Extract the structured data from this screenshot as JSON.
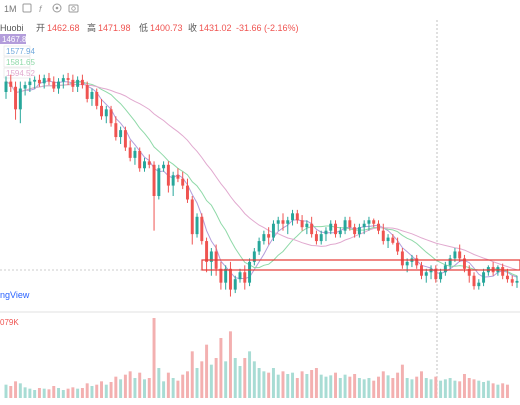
{
  "toolbar": {
    "interval_label": "1M",
    "icons": [
      "candle-style-icon",
      "indicator-icon",
      "settings-icon",
      "camera-icon"
    ]
  },
  "ohlc_header": {
    "symbol": "Huobi",
    "open_label": "开",
    "open_value": "1462.68",
    "high_label": "高",
    "high_value": "1471.98",
    "low_label": "低",
    "low_value": "1400.73",
    "close_label": "收",
    "close_value": "1431.02",
    "change_value": "-31.66 (-2.16%)"
  },
  "ma_labels": [
    "1467.88",
    "1577.94",
    "1581.65",
    "1594.52"
  ],
  "watermark": "ngView",
  "volume_label": "079K",
  "colors": {
    "up": "#26a69a",
    "down": "#ef5350",
    "volume_up": "#a8dcd4",
    "volume_down": "#f3b0b0",
    "ma_fast": "#b39ddb",
    "ma_mid": "#8fd9a8",
    "ma_slow": "#e1a9cf",
    "support_box": "#e53935"
  },
  "chart_data": {
    "type": "candlestick",
    "ohlc": [
      [
        1700,
        1790,
        1660,
        1760
      ],
      [
        1760,
        1800,
        1700,
        1730
      ],
      [
        1730,
        1760,
        1540,
        1600
      ],
      [
        1600,
        1760,
        1520,
        1720
      ],
      [
        1720,
        1760,
        1680,
        1740
      ],
      [
        1740,
        1780,
        1700,
        1760
      ],
      [
        1760,
        1790,
        1720,
        1770
      ],
      [
        1770,
        1800,
        1730,
        1750
      ],
      [
        1750,
        1800,
        1720,
        1780
      ],
      [
        1780,
        1810,
        1740,
        1760
      ],
      [
        1760,
        1790,
        1700,
        1720
      ],
      [
        1720,
        1780,
        1690,
        1760
      ],
      [
        1760,
        1800,
        1720,
        1780
      ],
      [
        1780,
        1810,
        1740,
        1770
      ],
      [
        1770,
        1800,
        1700,
        1730
      ],
      [
        1730,
        1790,
        1700,
        1770
      ],
      [
        1770,
        1800,
        1720,
        1740
      ],
      [
        1740,
        1760,
        1640,
        1660
      ],
      [
        1660,
        1720,
        1620,
        1700
      ],
      [
        1700,
        1720,
        1600,
        1620
      ],
      [
        1620,
        1660,
        1540,
        1560
      ],
      [
        1560,
        1620,
        1520,
        1600
      ],
      [
        1600,
        1620,
        1500,
        1520
      ],
      [
        1520,
        1560,
        1420,
        1440
      ],
      [
        1440,
        1500,
        1400,
        1480
      ],
      [
        1480,
        1500,
        1360,
        1380
      ],
      [
        1380,
        1420,
        1300,
        1320
      ],
      [
        1320,
        1380,
        1280,
        1360
      ],
      [
        1360,
        1380,
        1240,
        1260
      ],
      [
        1260,
        1320,
        1240,
        1300
      ],
      [
        1300,
        1340,
        1260,
        1280
      ],
      [
        1280,
        1300,
        900,
        1100
      ],
      [
        1100,
        1280,
        1080,
        1260
      ],
      [
        1260,
        1300,
        1240,
        1280
      ],
      [
        1280,
        1300,
        1120,
        1160
      ],
      [
        1160,
        1240,
        1100,
        1220
      ],
      [
        1220,
        1260,
        1180,
        1200
      ],
      [
        1200,
        1240,
        1140,
        1160
      ],
      [
        1160,
        1200,
        1060,
        1080
      ],
      [
        1080,
        1100,
        820,
        880
      ],
      [
        880,
        1000,
        860,
        980
      ],
      [
        980,
        1000,
        820,
        840
      ],
      [
        840,
        860,
        660,
        720
      ],
      [
        720,
        800,
        640,
        780
      ],
      [
        780,
        820,
        640,
        680
      ],
      [
        680,
        720,
        560,
        600
      ],
      [
        600,
        700,
        560,
        680
      ],
      [
        680,
        720,
        520,
        560
      ],
      [
        560,
        640,
        540,
        620
      ],
      [
        620,
        680,
        600,
        660
      ],
      [
        660,
        700,
        560,
        600
      ],
      [
        600,
        740,
        580,
        720
      ],
      [
        720,
        800,
        700,
        780
      ],
      [
        780,
        860,
        760,
        840
      ],
      [
        840,
        900,
        820,
        880
      ],
      [
        880,
        920,
        820,
        860
      ],
      [
        860,
        960,
        840,
        940
      ],
      [
        940,
        980,
        900,
        960
      ],
      [
        960,
        1000,
        900,
        940
      ],
      [
        940,
        980,
        880,
        960
      ],
      [
        960,
        1020,
        930,
        1000
      ],
      [
        1000,
        1020,
        940,
        960
      ],
      [
        960,
        990,
        900,
        920
      ],
      [
        920,
        960,
        880,
        940
      ],
      [
        940,
        980,
        860,
        880
      ],
      [
        880,
        900,
        820,
        840
      ],
      [
        840,
        900,
        820,
        880
      ],
      [
        880,
        920,
        840,
        900
      ],
      [
        900,
        960,
        880,
        940
      ],
      [
        940,
        960,
        860,
        880
      ],
      [
        880,
        920,
        860,
        900
      ],
      [
        900,
        980,
        880,
        960
      ],
      [
        960,
        980,
        900,
        920
      ],
      [
        920,
        940,
        860,
        880
      ],
      [
        880,
        940,
        860,
        920
      ],
      [
        920,
        960,
        880,
        940
      ],
      [
        940,
        980,
        900,
        960
      ],
      [
        960,
        970,
        920,
        940
      ],
      [
        940,
        960,
        880,
        900
      ],
      [
        900,
        940,
        820,
        840
      ],
      [
        840,
        880,
        800,
        860
      ],
      [
        860,
        880,
        820,
        830
      ],
      [
        830,
        860,
        760,
        780
      ],
      [
        780,
        800,
        680,
        700
      ],
      [
        700,
        740,
        660,
        720
      ],
      [
        720,
        760,
        690,
        740
      ],
      [
        740,
        760,
        680,
        700
      ],
      [
        700,
        720,
        620,
        640
      ],
      [
        640,
        680,
        600,
        660
      ],
      [
        660,
        700,
        620,
        680
      ],
      [
        680,
        700,
        600,
        620
      ],
      [
        620,
        680,
        600,
        660
      ],
      [
        660,
        720,
        640,
        700
      ],
      [
        700,
        760,
        680,
        740
      ],
      [
        740,
        800,
        720,
        780
      ],
      [
        780,
        820,
        720,
        740
      ],
      [
        740,
        760,
        660,
        680
      ],
      [
        680,
        700,
        600,
        640
      ],
      [
        640,
        660,
        560,
        580
      ],
      [
        580,
        620,
        560,
        600
      ],
      [
        600,
        680,
        580,
        660
      ],
      [
        660,
        700,
        640,
        690
      ],
      [
        690,
        720,
        640,
        660
      ],
      [
        660,
        700,
        640,
        690
      ],
      [
        690,
        710,
        620,
        640
      ],
      [
        640,
        680,
        600,
        620
      ],
      [
        620,
        640,
        580,
        600
      ],
      [
        600,
        640,
        570,
        610
      ]
    ],
    "volume": [
      20,
      18,
      25,
      22,
      16,
      14,
      12,
      15,
      14,
      13,
      18,
      15,
      12,
      14,
      16,
      14,
      15,
      22,
      18,
      20,
      25,
      20,
      24,
      32,
      28,
      35,
      40,
      30,
      38,
      28,
      30,
      120,
      45,
      25,
      38,
      30,
      26,
      35,
      40,
      70,
      45,
      55,
      80,
      50,
      60,
      90,
      55,
      100,
      60,
      48,
      60,
      70,
      55,
      45,
      40,
      38,
      45,
      35,
      40,
      36,
      38,
      30,
      40,
      36,
      42,
      45,
      35,
      32,
      34,
      38,
      30,
      35,
      32,
      36,
      30,
      28,
      30,
      26,
      32,
      40,
      34,
      30,
      38,
      50,
      30,
      28,
      32,
      40,
      30,
      28,
      32,
      26,
      28,
      30,
      26,
      25,
      36,
      30,
      28,
      26,
      24,
      26,
      22,
      20,
      22,
      20
    ],
    "ylim": [
      500,
      2000
    ]
  }
}
